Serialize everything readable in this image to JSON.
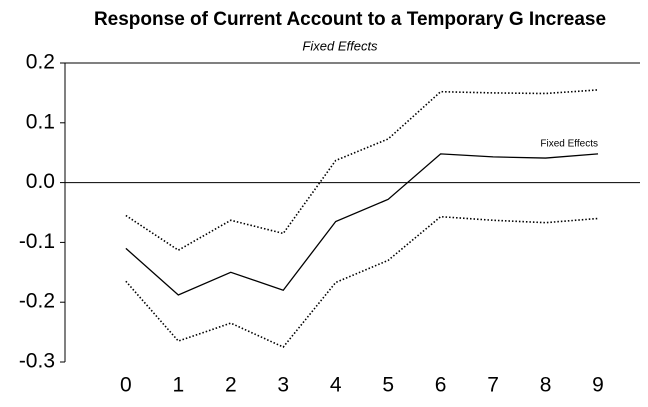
{
  "chart_data": {
    "type": "line",
    "title": "Response of Current Account to a Temporary G Increase",
    "subtitle": "Fixed Effects",
    "x": [
      0,
      1,
      2,
      3,
      4,
      5,
      6,
      7,
      8,
      9
    ],
    "series": [
      {
        "name": "Fixed Effects",
        "color": "#000000",
        "style": "solid",
        "values": [
          -0.11,
          -0.188,
          -0.15,
          -0.18,
          -0.065,
          -0.028,
          0.048,
          0.043,
          0.041,
          0.048
        ]
      },
      {
        "color": "#000000",
        "style": "dotted",
        "values": [
          -0.055,
          -0.113,
          -0.063,
          -0.085,
          0.037,
          0.073,
          0.152,
          0.15,
          0.149,
          0.155
        ]
      },
      {
        "color": "#000000",
        "style": "dotted",
        "values": [
          -0.165,
          -0.265,
          -0.235,
          -0.275,
          -0.167,
          -0.13,
          -0.057,
          -0.063,
          -0.067,
          -0.06
        ]
      }
    ],
    "xlim": [
      -1.16,
      9.8
    ],
    "xticks": [
      0,
      1,
      2,
      3,
      4,
      5,
      6,
      7,
      8,
      9
    ],
    "ylim": [
      -0.3,
      0.2
    ],
    "yticks": [
      0.2,
      0.1,
      {
        "value": 0,
        "label": "0.0"
      },
      -0.1,
      -0.2,
      -0.3
    ],
    "zero_line": true
  }
}
